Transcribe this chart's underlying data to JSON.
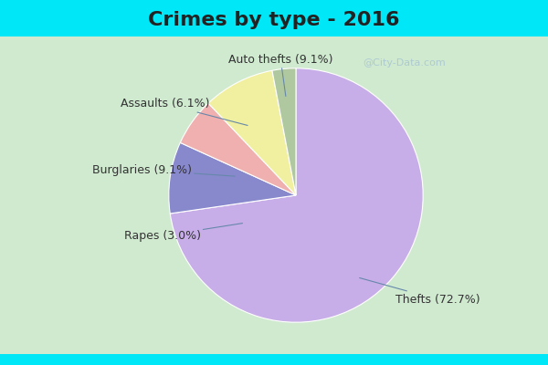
{
  "title": "Crimes by type - 2016",
  "slices": [
    {
      "label": "Thefts (72.7%)",
      "value": 72.7,
      "color": "#c8aee8"
    },
    {
      "label": "Auto thefts (9.1%)",
      "value": 9.1,
      "color": "#8888cc"
    },
    {
      "label": "Assaults (6.1%)",
      "value": 6.1,
      "color": "#f0b0b0"
    },
    {
      "label": "Burglaries (9.1%)",
      "value": 9.1,
      "color": "#f0f0a0"
    },
    {
      "label": "Rapes (3.0%)",
      "value": 3.0,
      "color": "#b0c8a0"
    }
  ],
  "bg_cyan": "#00e8f8",
  "bg_green": "#d0ead0",
  "bg_green_right": "#d8eef0",
  "title_fontsize": 16,
  "label_fontsize": 9,
  "watermark": "@City-Data.com",
  "title_color": "#222222",
  "label_color": "#333333"
}
